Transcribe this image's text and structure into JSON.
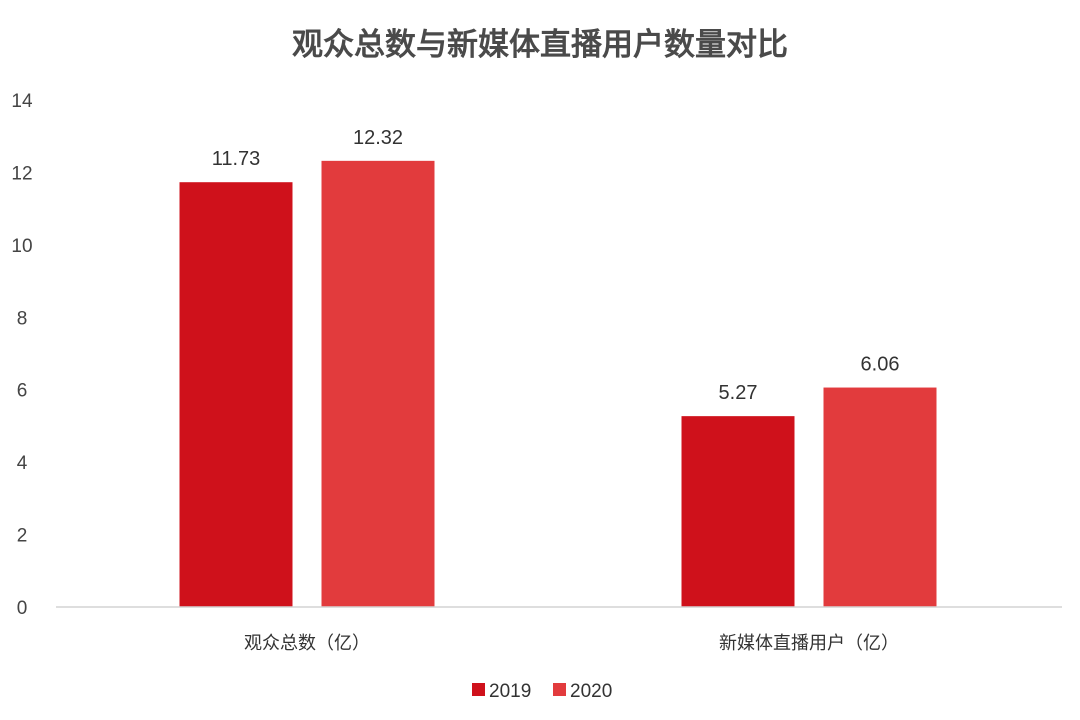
{
  "chart_data": {
    "type": "bar",
    "title": "观众总数与新媒体直播用户数量对比",
    "categories": [
      "观众总数（亿）",
      "新媒体直播用户（亿）"
    ],
    "series": [
      {
        "name": "2019",
        "values": [
          11.73,
          5.27
        ],
        "color": "#cf111b"
      },
      {
        "name": "2020",
        "values": [
          12.32,
          6.06
        ],
        "color": "#e23b3d"
      }
    ],
    "data_labels": [
      [
        "11.73",
        "5.27"
      ],
      [
        "12.32",
        "6.06"
      ]
    ],
    "y_ticks": [
      "0",
      "2",
      "4",
      "6",
      "8",
      "10",
      "12",
      "14"
    ],
    "ylim": [
      0,
      14
    ],
    "grid": false,
    "legend_position": "bottom-center",
    "xlabel": "",
    "ylabel": ""
  }
}
